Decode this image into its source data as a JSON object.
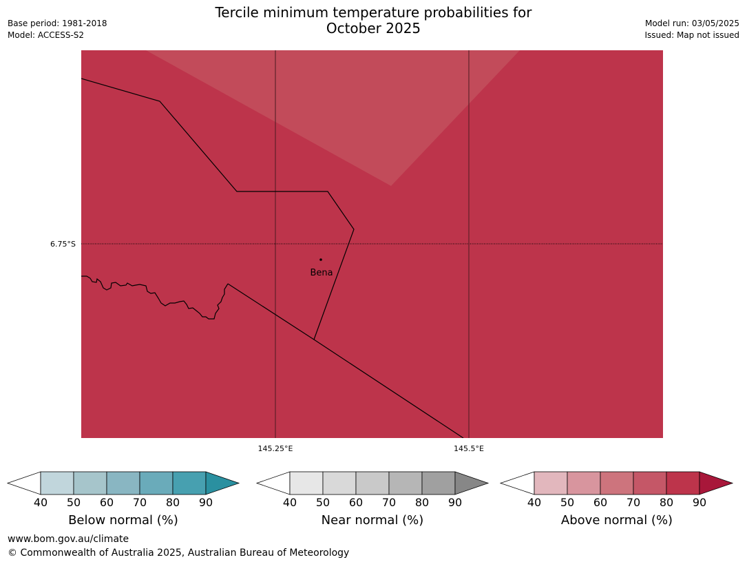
{
  "header": {
    "title_line1": "Tercile minimum temperature probabilities for",
    "title_line2": "October 2025",
    "base_period": "Base period: 1981-2018",
    "model": "Model: ACCESS-S2",
    "model_run": "Model run: 03/05/2025",
    "issued": "Issued: Map not issued"
  },
  "map": {
    "fill_colors": {
      "above_80_90": "#bd344b",
      "above_70_80": "#c24b5a"
    },
    "graticule": {
      "latitudes": [
        "6.75°S"
      ],
      "longitudes": [
        "145.25°E",
        "145.5°E"
      ]
    },
    "places": [
      {
        "name": "Bena"
      }
    ]
  },
  "colorbars": [
    {
      "label": "Below normal (%)",
      "ticks": [
        "40",
        "50",
        "60",
        "70",
        "80",
        "90"
      ],
      "colors": [
        "#c1d6dc",
        "#a6c5cb",
        "#89b6c2",
        "#6aabba",
        "#47a0b0",
        "#2a90a0"
      ]
    },
    {
      "label": "Near normal (%)",
      "ticks": [
        "40",
        "50",
        "60",
        "70",
        "80",
        "90"
      ],
      "colors": [
        "#e7e7e7",
        "#d9d9d9",
        "#c9c9c9",
        "#b6b6b6",
        "#a0a0a0",
        "#878787"
      ]
    },
    {
      "label": "Above normal (%)",
      "ticks": [
        "40",
        "50",
        "60",
        "70",
        "80",
        "90"
      ],
      "colors": [
        "#e2b7bd",
        "#d8959e",
        "#cd747d",
        "#c55767",
        "#bd344b",
        "#a8173a"
      ]
    }
  ],
  "footer": {
    "url": "www.bom.gov.au/climate",
    "copyright": "© Commonwealth of Australia 2025, Australian Bureau of Meteorology"
  }
}
